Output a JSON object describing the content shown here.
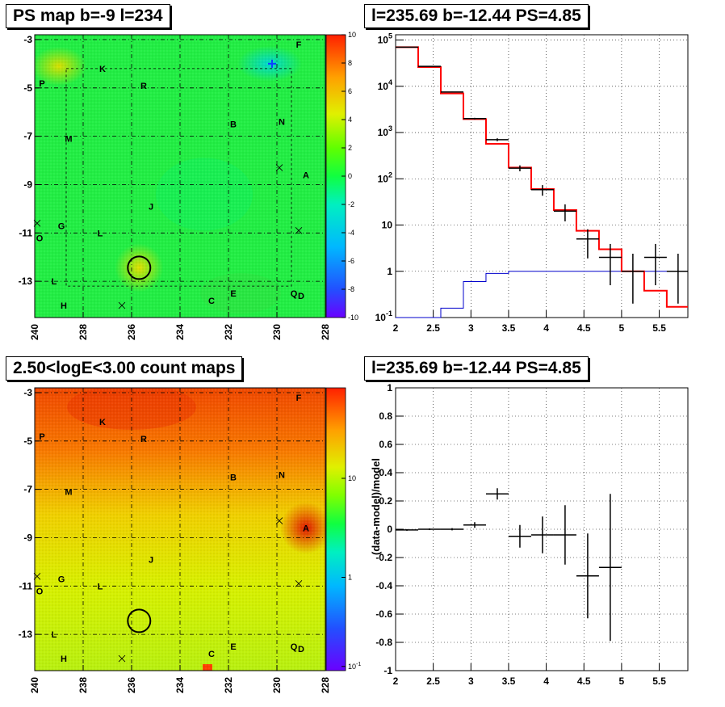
{
  "titles": {
    "ps_map": "PS map b=-9 l=234",
    "spectrum": "l=235.69 b=-12.44 PS=4.85",
    "count_map": "2.50<logE<3.00 count maps",
    "residual": "l=235.69 b=-12.44 PS=4.85"
  },
  "colors": {
    "data": "#000000",
    "model": "#ff0000",
    "component": "#0000cc",
    "circle": "#000000"
  },
  "chart_data": [
    {
      "type": "heatmap",
      "title": "PS map b=-9 l=234",
      "x_ticks": [
        "240",
        "238",
        "236",
        "234",
        "232",
        "230",
        "228"
      ],
      "xlim": [
        240,
        228
      ],
      "y_ticks": [
        "-3",
        "-5",
        "-7",
        "-9",
        "-11",
        "-13"
      ],
      "ylim": [
        -14.5,
        -2.8
      ],
      "colorbar": {
        "ticks": [
          "10",
          "8",
          "6",
          "4",
          "2",
          "0",
          "-2",
          "-4",
          "-6",
          "-8",
          "-10"
        ],
        "range": [
          -10,
          10
        ],
        "scale": "linear"
      },
      "sources": [
        {
          "label": "F",
          "l": 229.1,
          "b": -3.2
        },
        {
          "label": "K",
          "l": 237.2,
          "b": -4.2
        },
        {
          "label": "P",
          "l": 239.7,
          "b": -4.8
        },
        {
          "label": "R",
          "l": 235.5,
          "b": -4.9
        },
        {
          "label": "B",
          "l": 231.8,
          "b": -6.5
        },
        {
          "label": "N",
          "l": 229.8,
          "b": -6.4
        },
        {
          "label": "M",
          "l": 238.6,
          "b": -7.1
        },
        {
          "label": "A",
          "l": 228.8,
          "b": -8.6
        },
        {
          "label": "J",
          "l": 235.2,
          "b": -9.9
        },
        {
          "label": "G",
          "l": 238.9,
          "b": -10.7
        },
        {
          "label": "L",
          "l": 237.3,
          "b": -11.0
        },
        {
          "label": "O",
          "l": 239.8,
          "b": -11.2
        },
        {
          "label": "L",
          "l": 239.2,
          "b": -13.0
        },
        {
          "label": "H",
          "l": 238.8,
          "b": -14.0
        },
        {
          "label": "C",
          "l": 232.7,
          "b": -13.8
        },
        {
          "label": "E",
          "l": 231.8,
          "b": -13.5
        },
        {
          "label": "Q",
          "l": 229.3,
          "b": -13.5
        },
        {
          "label": "D",
          "l": 229.0,
          "b": -13.6
        }
      ],
      "crosses": [
        {
          "l": 236.4,
          "b": -14.0
        },
        {
          "l": 229.9,
          "b": -8.3
        },
        {
          "l": 229.1,
          "b": -10.9
        },
        {
          "l": 239.9,
          "b": -10.6
        }
      ],
      "selected_point": {
        "l": 235.69,
        "b": -12.44
      }
    },
    {
      "type": "line",
      "title": "l=235.69 b=-12.44 PS=4.85",
      "x_ticks": [
        "2",
        "2.5",
        "3",
        "3.5",
        "4",
        "4.5",
        "5",
        "5.5"
      ],
      "xlim": [
        2.0,
        5.88
      ],
      "y_scale": "log",
      "y_ticks": [
        "10^-1",
        "1",
        "10",
        "10^2",
        "10^3",
        "10^4",
        "10^5"
      ],
      "ylim": [
        0.1,
        130000
      ],
      "x": [
        2.15,
        2.45,
        2.75,
        3.05,
        3.35,
        3.65,
        3.95,
        4.25,
        4.55,
        4.85,
        5.15,
        5.45,
        5.75
      ],
      "bin_edges": [
        2.0,
        2.3,
        2.6,
        2.9,
        3.2,
        3.5,
        3.8,
        4.1,
        4.4,
        4.7,
        5.0,
        5.3,
        5.6,
        5.88
      ],
      "series": [
        {
          "values": [
            70000,
            27000,
            7500,
            2000,
            700,
            170,
            58,
            20,
            5,
            2,
            1,
            2,
            1
          ],
          "err_low": [
            500,
            300,
            150,
            80,
            50,
            25,
            15,
            8,
            3.1,
            1.5,
            0.8,
            1.5,
            0.8
          ],
          "err_high": [
            500,
            300,
            150,
            80,
            50,
            25,
            15,
            8,
            3.1,
            1.9,
            1.4,
            1.9,
            1.4
          ]
        },
        {
          "values": [
            70000,
            26000,
            7000,
            1950,
            570,
            175,
            60,
            21,
            7.5,
            3,
            1,
            0.38,
            0.17
          ]
        },
        {
          "values": [
            0.1,
            0.1,
            0.16,
            0.6,
            0.9,
            1.0,
            1.0,
            1.0,
            1.0,
            1.0,
            1.0,
            1.0,
            1.0
          ]
        }
      ]
    },
    {
      "type": "heatmap",
      "title": "2.50<logE<3.00 count maps",
      "x_ticks": [
        "240",
        "238",
        "236",
        "234",
        "232",
        "230",
        "228"
      ],
      "xlim": [
        240,
        228
      ],
      "y_ticks": [
        "-3",
        "-5",
        "-7",
        "-9",
        "-11",
        "-13"
      ],
      "ylim": [
        -14.5,
        -2.8
      ],
      "colorbar": {
        "ticks": [
          "10",
          "1",
          "10^-1"
        ],
        "scale": "log"
      },
      "sources": [
        {
          "label": "F",
          "l": 229.1,
          "b": -3.2
        },
        {
          "label": "K",
          "l": 237.2,
          "b": -4.2
        },
        {
          "label": "P",
          "l": 239.7,
          "b": -4.8
        },
        {
          "label": "R",
          "l": 235.5,
          "b": -4.9
        },
        {
          "label": "B",
          "l": 231.8,
          "b": -6.5
        },
        {
          "label": "N",
          "l": 229.8,
          "b": -6.4
        },
        {
          "label": "M",
          "l": 238.6,
          "b": -7.1
        },
        {
          "label": "A",
          "l": 228.8,
          "b": -8.6
        },
        {
          "label": "J",
          "l": 235.2,
          "b": -9.9
        },
        {
          "label": "G",
          "l": 238.9,
          "b": -10.7
        },
        {
          "label": "L",
          "l": 237.3,
          "b": -11.0
        },
        {
          "label": "O",
          "l": 239.8,
          "b": -11.2
        },
        {
          "label": "L",
          "l": 239.2,
          "b": -13.0
        },
        {
          "label": "H",
          "l": 238.8,
          "b": -14.0
        },
        {
          "label": "C",
          "l": 232.7,
          "b": -13.8
        },
        {
          "label": "E",
          "l": 231.8,
          "b": -13.5
        },
        {
          "label": "Q",
          "l": 229.3,
          "b": -13.5
        },
        {
          "label": "D",
          "l": 229.0,
          "b": -13.6
        }
      ],
      "crosses": [
        {
          "l": 236.4,
          "b": -14.0
        },
        {
          "l": 229.9,
          "b": -8.3
        },
        {
          "l": 229.1,
          "b": -10.9
        },
        {
          "l": 239.9,
          "b": -10.6
        }
      ],
      "selected_point": {
        "l": 235.69,
        "b": -12.44
      }
    },
    {
      "type": "scatter",
      "title": "l=235.69 b=-12.44 PS=4.85",
      "ylabel": "(data-model)/model",
      "x_ticks": [
        "2",
        "2.5",
        "3",
        "3.5",
        "4",
        "4.5",
        "5",
        "5.5"
      ],
      "xlim": [
        2.0,
        5.88
      ],
      "y_ticks": [
        "1",
        "0.8",
        "0.6",
        "0.4",
        "0.2",
        "0",
        "-0.2",
        "-0.4",
        "-0.6",
        "-0.8",
        "-1"
      ],
      "ylim": [
        -1,
        1
      ],
      "points": [
        {
          "x": 2.15,
          "y": -0.005,
          "xerr": 0.15,
          "yerr": 0.006
        },
        {
          "x": 2.45,
          "y": 0.0,
          "xerr": 0.15,
          "yerr": 0.006
        },
        {
          "x": 2.75,
          "y": 0.0,
          "xerr": 0.15,
          "yerr": 0.008
        },
        {
          "x": 3.05,
          "y": 0.03,
          "xerr": 0.15,
          "yerr": 0.02
        },
        {
          "x": 3.35,
          "y": 0.25,
          "xerr": 0.15,
          "yerr": 0.04
        },
        {
          "x": 3.65,
          "y": -0.05,
          "xerr": 0.15,
          "yerr": 0.08
        },
        {
          "x": 3.95,
          "y": -0.04,
          "xerr": 0.15,
          "yerr": 0.13
        },
        {
          "x": 4.25,
          "y": -0.04,
          "xerr": 0.15,
          "yerr": 0.21
        },
        {
          "x": 4.55,
          "y": -0.33,
          "xerr": 0.15,
          "yerr": 0.3
        },
        {
          "x": 4.85,
          "y": -0.27,
          "xerr": 0.15,
          "yerr": 0.52
        }
      ]
    }
  ]
}
